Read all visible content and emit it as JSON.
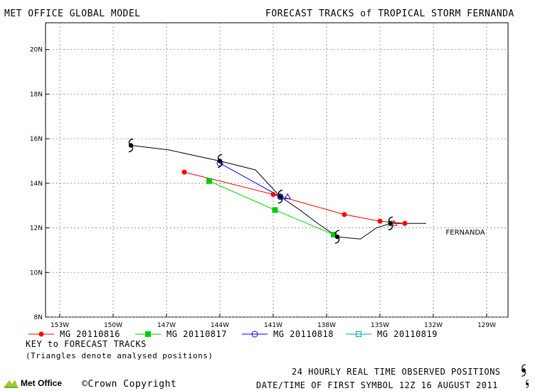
{
  "header": {
    "left_title": "MET OFFICE GLOBAL MODEL",
    "right_title": "FORECAST TRACKS of TROPICAL STORM FERNANDA"
  },
  "chart_data": {
    "type": "line",
    "title": "FORECAST TRACKS of TROPICAL STORM FERNANDA",
    "x_ticks": [
      "153W",
      "150W",
      "147W",
      "144W",
      "141W",
      "138W",
      "135W",
      "132W",
      "129W"
    ],
    "x_tick_values": [
      -153,
      -150,
      -147,
      -144,
      -141,
      -138,
      -135,
      -132,
      -129
    ],
    "y_ticks": [
      "8N",
      "10N",
      "12N",
      "14N",
      "16N",
      "18N",
      "20N"
    ],
    "y_tick_values": [
      8,
      10,
      12,
      14,
      16,
      18,
      20
    ],
    "xlim": [
      -153.8,
      -127.8
    ],
    "ylim": [
      8,
      21.2
    ],
    "grid": true,
    "storm_label": "FERNANDA",
    "observed_track": {
      "name": "24 HOURLY REAL TIME OBSERVED POSITIONS",
      "color": "#000000",
      "line": [
        [
          -149,
          15.7
        ],
        [
          -146.9,
          15.5
        ],
        [
          -144,
          15
        ],
        [
          -142,
          14.6
        ],
        [
          -140.6,
          13.4
        ],
        [
          -139.5,
          12.8
        ],
        [
          -138.5,
          12.2
        ],
        [
          -137.4,
          11.6
        ],
        [
          -136.1,
          11.5
        ],
        [
          -135.2,
          12
        ],
        [
          -134.4,
          12.2
        ],
        [
          -133.2,
          12.2
        ],
        [
          -132.4,
          12.2
        ]
      ],
      "symbols": [
        [
          -149,
          15.7
        ],
        [
          -144,
          15
        ],
        [
          -140.6,
          13.4
        ],
        [
          -137.4,
          11.6
        ],
        [
          -134.4,
          12.2
        ]
      ]
    },
    "series": [
      {
        "name": "MG 20110816",
        "color": "#ff0000",
        "marker": "circle-filled",
        "points": [
          [
            -146,
            14.5
          ],
          [
            -141,
            13.5
          ],
          [
            -137,
            12.6
          ],
          [
            -135,
            12.3
          ],
          [
            -133.6,
            12.2
          ]
        ]
      },
      {
        "name": "MG 20110817",
        "color": "#00cc00",
        "marker": "square-filled",
        "points": [
          [
            -144.6,
            14.1
          ],
          [
            -140.9,
            12.8
          ],
          [
            -137.6,
            11.7
          ]
        ]
      },
      {
        "name": "MG 20110818",
        "color": "#0000ff",
        "marker": "circle-open",
        "points": [
          [
            -144,
            14.9
          ],
          [
            -140.6,
            13.4
          ]
        ]
      },
      {
        "name": "MG 20110819",
        "color": "#00aaaa",
        "marker": "square-open",
        "points": [
          [
            -134.4,
            12.2
          ]
        ]
      }
    ],
    "analysed_triangles": [
      {
        "color": "#0000ff",
        "at": [
          -140.2,
          13.4
        ]
      },
      {
        "color": "#ff0000",
        "at": [
          -134.2,
          12.2
        ]
      }
    ]
  },
  "key": {
    "title": "KEY to FORECAST TRACKS",
    "note": "(Triangles denote analysed positions)"
  },
  "footer": {
    "observed_label": "24 HOURLY REAL TIME OBSERVED POSITIONS",
    "date_label": "DATE/TIME OF FIRST SYMBOL 12Z 16 AUGUST 2011",
    "copyright": "©Crown Copyright",
    "logo_text": "Met Office"
  }
}
